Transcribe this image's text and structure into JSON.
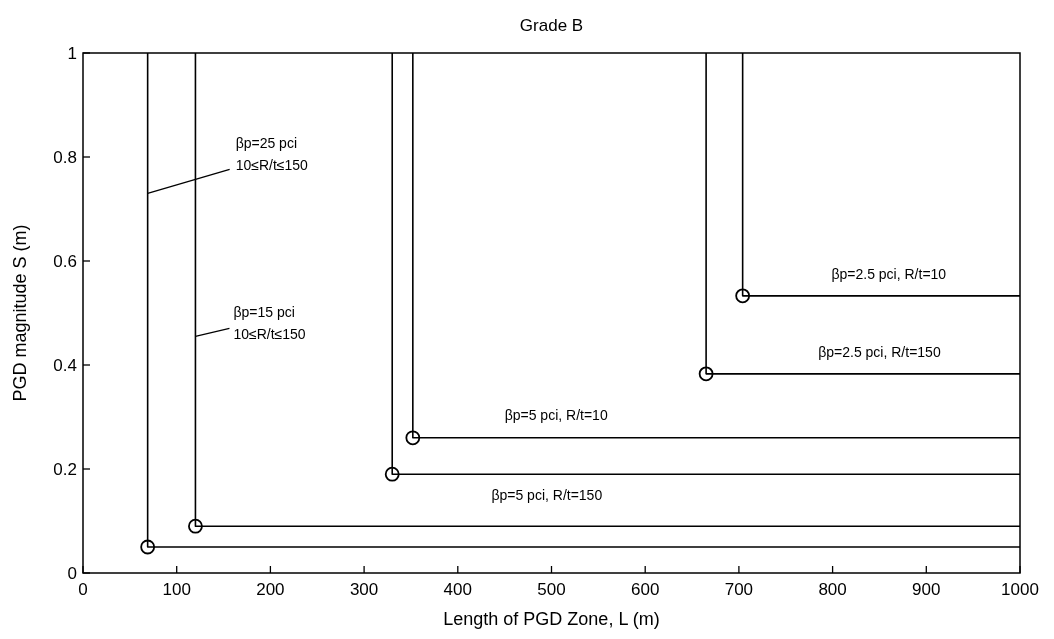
{
  "chart_data": {
    "type": "line",
    "title": "Grade B",
    "xlabel": "Length of PGD Zone, L (m)",
    "ylabel": "PGD magnitude S (m)",
    "xlim": [
      0,
      1000
    ],
    "ylim": [
      0,
      1
    ],
    "xticks": [
      0,
      100,
      200,
      300,
      400,
      500,
      600,
      700,
      800,
      900,
      1000
    ],
    "yticks": [
      0,
      0.2,
      0.4,
      0.6,
      0.8,
      1
    ],
    "grid": false,
    "line_style": "solid",
    "annotations": [
      {
        "text": "βp=25 pci\n10≤R/t≤150",
        "x": 69,
        "y": 0.73
      },
      {
        "text": "βp=15 pci\n10≤R/t≤150",
        "x": 120,
        "y": 0.455
      }
    ],
    "series": [
      {
        "color": "#000000",
        "x": [
          69,
          69,
          1000
        ],
        "values": [
          1,
          0.05,
          0.05
        ],
        "marker": "none"
      },
      {
        "color": "#000000",
        "x": [
          120,
          120,
          1000
        ],
        "values": [
          1,
          0.09,
          0.09
        ],
        "marker": "none"
      },
      {
        "name": "βp=5 pci, R/t=150",
        "color": "#000000",
        "x": [
          330,
          330,
          1000
        ],
        "values": [
          1,
          0.19,
          0.19
        ],
        "marker": "none"
      },
      {
        "name": "βp=5 pci, R/t=10",
        "color": "#000000",
        "x": [
          352,
          352,
          1000
        ],
        "values": [
          1,
          0.26,
          0.26
        ],
        "marker": "none"
      },
      {
        "name": "βp=2.5 pci, R/t=150",
        "color": "#000000",
        "x": [
          665,
          665,
          1000
        ],
        "values": [
          1,
          0.383,
          0.383
        ],
        "marker": "none"
      },
      {
        "name": "βp=2.5 pci, R/t=10",
        "color": "#000000",
        "x": [
          704,
          704,
          1000
        ],
        "values": [
          1,
          0.533,
          0.533
        ],
        "marker": "none"
      },
      {
        "type": "scatter",
        "color": "#000000",
        "x": [
          69,
          120,
          330,
          352,
          665,
          704
        ],
        "values": [
          0.05,
          0.09,
          0.19,
          0.26,
          0.383,
          0.533
        ],
        "marker": "circle"
      }
    ]
  }
}
